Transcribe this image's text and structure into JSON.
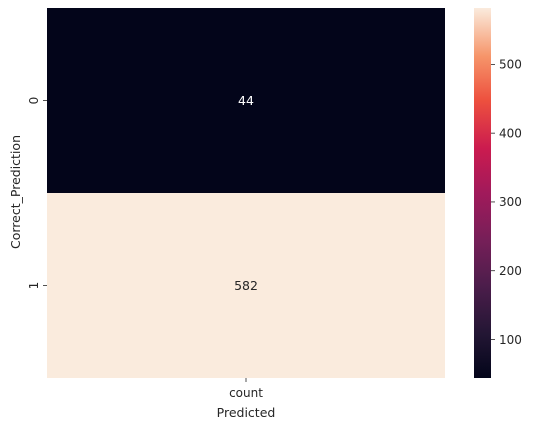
{
  "chart_data": {
    "type": "heatmap",
    "title": "",
    "xlabel": "Predicted",
    "ylabel": "Correct_Prediction",
    "x_categories": [
      "count"
    ],
    "y_categories": [
      "0",
      "1"
    ],
    "values": [
      [
        44
      ],
      [
        582
      ]
    ],
    "cell_labels": [
      [
        "44"
      ],
      [
        "582"
      ]
    ],
    "colormap": "rocket",
    "colorbar": {
      "range": [
        44,
        582
      ],
      "ticks": [
        100,
        200,
        300,
        400,
        500
      ],
      "tick_labels": [
        "100",
        "200",
        "300",
        "400",
        "500"
      ]
    },
    "grid": false
  }
}
